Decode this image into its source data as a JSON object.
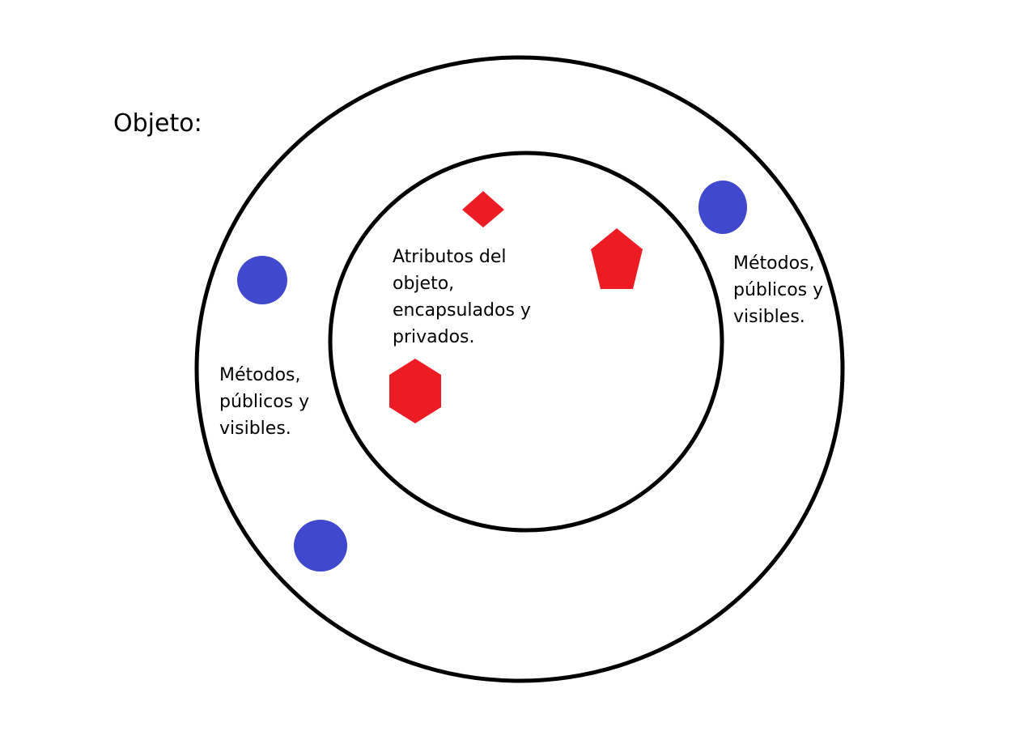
{
  "title": "Objeto:",
  "inner_label": "Atributos del\nobjeto,\nencapsulados y\nprivados.",
  "method_label_left": "Métodos,\npúblicos y\nvisibles.",
  "method_label_right": "Métodos,\npúblicos y\nvisibles.",
  "colors": {
    "ring_stroke": "#000000",
    "method_dot": "#4049CE",
    "attribute_shape": "#ED1C24",
    "background": "#FFFFFF"
  },
  "legend": {
    "method_shape": "circle",
    "attribute_shapes": [
      "diamond",
      "pentagon",
      "hexagon"
    ]
  }
}
